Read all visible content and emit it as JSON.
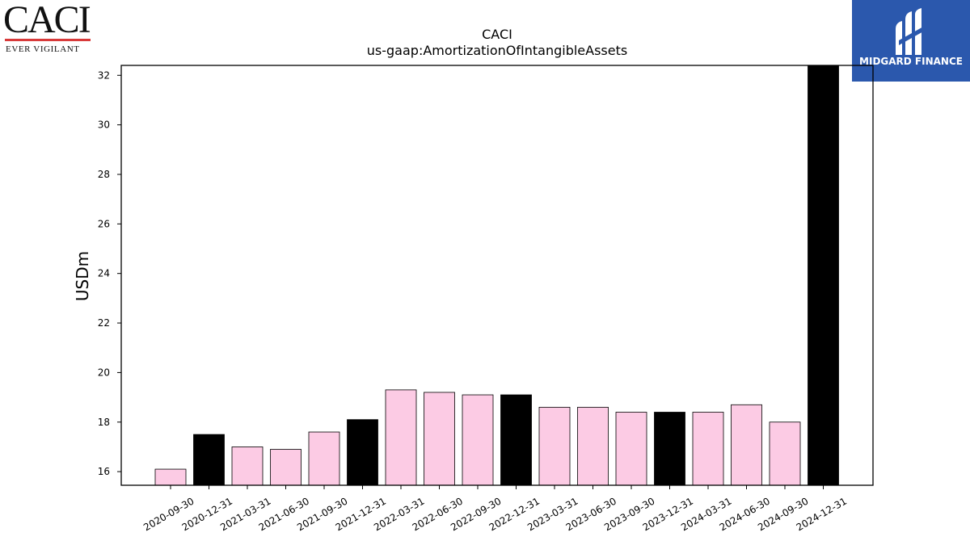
{
  "logos": {
    "left": {
      "name": "CACI",
      "tagline": "EVER VIGILANT",
      "accent_color": "#d83a3a"
    },
    "right": {
      "name": "MIDGARD FINANCE",
      "background_color": "#2b58ad"
    }
  },
  "chart_data": {
    "type": "bar",
    "title": "CACI",
    "subtitle": "us-gaap:AmortizationOfIntangibleAssets",
    "xlabel": "",
    "ylabel": "USDm",
    "ylim": [
      15.45,
      32.4
    ],
    "yticks": [
      16,
      18,
      20,
      22,
      24,
      26,
      28,
      30,
      32
    ],
    "grid": false,
    "categories": [
      "2020-09-30",
      "2020-12-31",
      "2021-03-31",
      "2021-06-30",
      "2021-09-30",
      "2021-12-31",
      "2022-03-31",
      "2022-06-30",
      "2022-09-30",
      "2022-12-31",
      "2023-03-31",
      "2023-06-30",
      "2023-09-30",
      "2023-12-31",
      "2024-03-31",
      "2024-06-30",
      "2024-09-30",
      "2024-12-31"
    ],
    "values": [
      16.1,
      17.5,
      17.0,
      16.9,
      17.6,
      18.1,
      19.3,
      19.2,
      19.1,
      19.1,
      18.6,
      18.6,
      18.4,
      18.4,
      18.4,
      18.7,
      18.0,
      32.4
    ],
    "colors": {
      "quarter": "#fccbe4",
      "fiscal_q4": "#000000"
    },
    "highlighted_categories": [
      "2020-12-31",
      "2021-12-31",
      "2022-12-31",
      "2023-12-31",
      "2024-12-31"
    ]
  }
}
